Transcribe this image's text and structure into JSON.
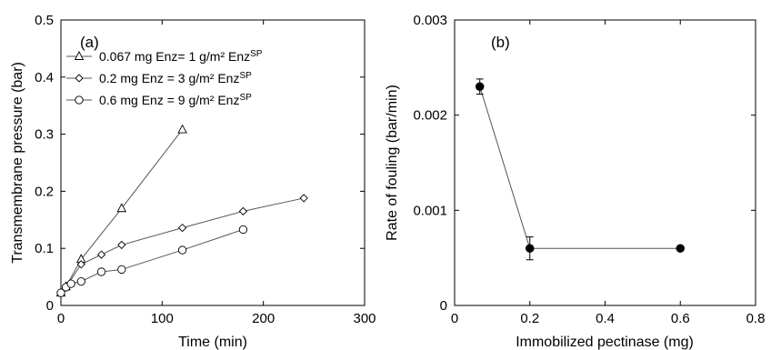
{
  "chart_data": [
    {
      "panel_label": "(a)",
      "type": "line",
      "xlabel": "Time (min)",
      "ylabel": "Transmembrane pressure (bar)",
      "xlim": [
        0,
        300
      ],
      "ylim": [
        0,
        0.5
      ],
      "xticks": [
        "0",
        "100",
        "200",
        "300"
      ],
      "yticks": [
        "0",
        "0.1",
        "0.2",
        "0.3",
        "0.4",
        "0.5"
      ],
      "grid": false,
      "legend_position": "top-left",
      "series": [
        {
          "name": "0.067 mg Enz= 1 g/m² Enz",
          "name_sup": "SP",
          "marker": "triangle",
          "x": [
            0,
            5,
            20,
            60,
            120
          ],
          "y": [
            0.022,
            0.033,
            0.081,
            0.17,
            0.308
          ]
        },
        {
          "name": "0.2 mg Enz = 3 g/m² Enz",
          "name_sup": "SP",
          "marker": "diamond",
          "x": [
            0,
            5,
            20,
            40,
            60,
            120,
            180,
            240
          ],
          "y": [
            0.022,
            0.032,
            0.072,
            0.089,
            0.106,
            0.136,
            0.165,
            0.188
          ]
        },
        {
          "name": "0.6 mg Enz = 9 g/m² Enz",
          "name_sup": "SP",
          "marker": "circle",
          "x": [
            0,
            5,
            10,
            20,
            40,
            60,
            120,
            180
          ],
          "y": [
            0.022,
            0.032,
            0.038,
            0.042,
            0.059,
            0.063,
            0.097,
            0.133
          ]
        }
      ]
    },
    {
      "panel_label": "(b)",
      "type": "line",
      "xlabel": "Immobilized pectinase (mg)",
      "ylabel": "Rate of fouling (bar/min)",
      "xlim": [
        0,
        0.8
      ],
      "ylim": [
        0,
        0.003
      ],
      "xticks": [
        "0",
        "0.2",
        "0.4",
        "0.6",
        "0.8"
      ],
      "yticks": [
        "0",
        "0.001",
        "0.002",
        "0.003"
      ],
      "grid": false,
      "series": [
        {
          "marker": "filled-circle",
          "x": [
            0.067,
            0.2,
            0.6
          ],
          "y": [
            0.0023,
            0.0006,
            0.0006
          ],
          "error": [
            8e-05,
            0.00012,
            0.0
          ]
        }
      ]
    }
  ]
}
